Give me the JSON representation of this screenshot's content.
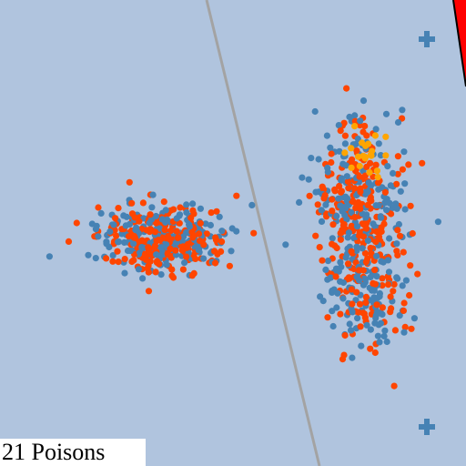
{
  "scene": {
    "background_color": "#b0c4de",
    "divider_color": "#a3a3a3",
    "corner_marker_colors": [
      "#ff0000",
      "#000000"
    ]
  },
  "status": {
    "poison_label": "21 Poisons"
  },
  "markers": {
    "plus_color": "#4682b4",
    "items": [
      {
        "name": "plus-marker-top-right",
        "icon": "plus-icon"
      },
      {
        "name": "plus-marker-bottom-right",
        "icon": "plus-icon"
      }
    ]
  },
  "chart_data": {
    "type": "scatter",
    "title": "",
    "xlabel": "",
    "ylabel": "",
    "xlim": [
      0,
      1
    ],
    "ylim": [
      0,
      1
    ],
    "grid": false,
    "legend": "none",
    "series": [
      {
        "name": "class-a",
        "color": "#4682b4"
      },
      {
        "name": "class-b",
        "color": "#ff4500"
      },
      {
        "name": "poisons",
        "color": "#ffa500",
        "count": 21
      }
    ],
    "clusters": [
      {
        "name": "left-cluster",
        "center": [
          0.35,
          0.51
        ],
        "spread": [
          0.07,
          0.035
        ],
        "counts": {
          "class-a": 220,
          "class-b": 220
        }
      },
      {
        "name": "right-cluster-upper",
        "center": [
          0.77,
          0.43
        ],
        "spread": [
          0.05,
          0.08
        ],
        "counts": {
          "class-a": 160,
          "class-b": 200
        }
      },
      {
        "name": "right-cluster-lower",
        "center": [
          0.79,
          0.63
        ],
        "spread": [
          0.04,
          0.06
        ],
        "counts": {
          "class-a": 110,
          "class-b": 70
        }
      },
      {
        "name": "poison-cluster",
        "center": [
          0.79,
          0.33
        ],
        "spread": [
          0.025,
          0.025
        ],
        "counts": {
          "poisons": 21
        }
      }
    ]
  }
}
